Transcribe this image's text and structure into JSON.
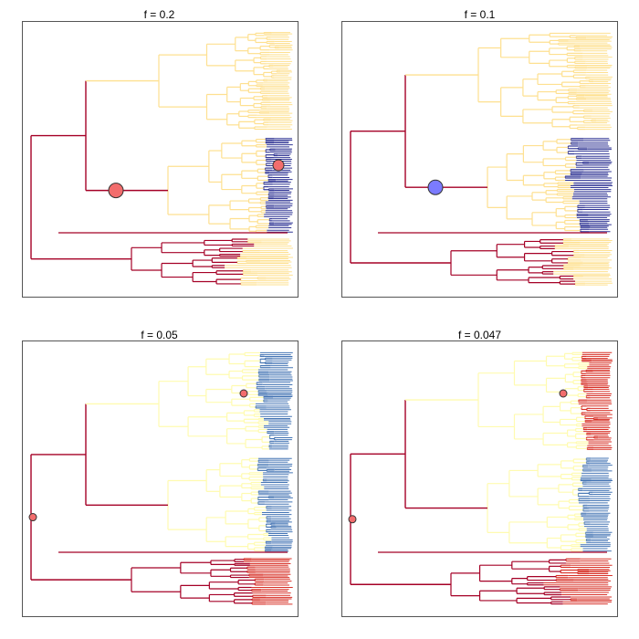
{
  "chart_data": [
    {
      "type": "other",
      "title": "f = 0.2",
      "colors": {
        "high": "#a50026",
        "mid": "#fee090",
        "low": "#313695",
        "node_marker": "#f26d6d"
      },
      "node_markers": [
        {
          "clade": "mid-top",
          "size": "large"
        },
        {
          "clade": "dark-blue-tips",
          "size": "medium"
        }
      ],
      "clade_colors": [
        "#fee090",
        "#313695",
        "#fee090"
      ]
    },
    {
      "type": "other",
      "title": "f = 0.1",
      "colors": {
        "high": "#a50026",
        "mid": "#fee090",
        "low": "#313695",
        "node_marker": "#7b7bff"
      },
      "node_markers": [
        {
          "clade": "mid-top",
          "size": "large"
        }
      ],
      "clade_colors": [
        "#fee090",
        "#313695",
        "#fee090"
      ]
    },
    {
      "type": "other",
      "title": "f = 0.05",
      "colors": {
        "high": "#a50026",
        "mid": "#fffbb0",
        "low": "#4575b4",
        "node_marker": "#f26d6d"
      },
      "node_markers": [
        {
          "clade": "root",
          "size": "small"
        },
        {
          "clade": "top-red",
          "size": "small"
        }
      ],
      "clade_colors": [
        "#4575b4",
        "#4575b4",
        "#d73027"
      ]
    },
    {
      "type": "other",
      "title": "f = 0.047",
      "colors": {
        "high": "#a50026",
        "mid": "#fffbb0",
        "low": "#4575b4",
        "node_marker": "#f26d6d"
      },
      "node_markers": [
        {
          "clade": "root",
          "size": "small"
        },
        {
          "clade": "top-red",
          "size": "small"
        }
      ],
      "clade_colors": [
        "#d73027",
        "#4575b4",
        "#d73027"
      ]
    }
  ]
}
